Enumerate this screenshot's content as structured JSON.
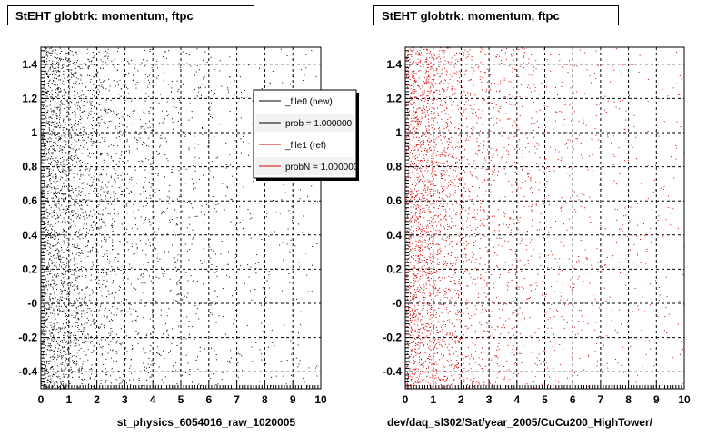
{
  "panels": [
    {
      "title": "StEHT globtrk: momentum, ftpc",
      "xlabel": "st_physics_6054016_raw_1020005",
      "marker_color": "#000000"
    },
    {
      "title": "StEHT globtrk: momentum, ftpc",
      "xlabel": "dev/daq_sl302/Sat/year_2005/CuCu200_HighTower/",
      "marker_color": "#d40000"
    }
  ],
  "legend": {
    "entries": [
      {
        "label": "_file0 (new)",
        "color": "#000000"
      },
      {
        "label": "prob = 1.000000",
        "color": "#000000"
      },
      {
        "label": "_file1 (ref)",
        "color": "#d40000"
      },
      {
        "label": "probN = 1.000000",
        "color": "#d40000"
      }
    ]
  },
  "footer": "...",
  "chart_data": [
    {
      "type": "scatter",
      "title": "StEHT globtrk: momentum, ftpc",
      "xlabel": "st_physics_6054016_raw_1020005",
      "ylabel": "",
      "xlim": [
        0,
        10
      ],
      "ylim": [
        -0.5,
        1.5
      ],
      "xticks": [
        "0",
        "1",
        "2",
        "3",
        "4",
        "5",
        "6",
        "7",
        "8",
        "9",
        "10"
      ],
      "yticks": [
        "-0.4",
        "-0.2",
        "-0",
        "0.2",
        "0.4",
        "0.6",
        "0.8",
        "1",
        "1.2",
        "1.4"
      ],
      "grid": true,
      "density_profile": {
        "description_bins_x": [
          0,
          0.5,
          1,
          1.5,
          2,
          2.5,
          3,
          4,
          5,
          6,
          7,
          8,
          9,
          10
        ],
        "relative_density": [
          1.0,
          0.85,
          0.6,
          0.42,
          0.32,
          0.25,
          0.2,
          0.14,
          0.1,
          0.08,
          0.06,
          0.05,
          0.04
        ]
      },
      "series": [
        {
          "name": "_file0 (new)",
          "color": "#000000"
        }
      ]
    },
    {
      "type": "scatter",
      "title": "StEHT globtrk: momentum, ftpc",
      "xlabel": "dev/daq_sl302/Sat/year_2005/CuCu200_HighTower/",
      "ylabel": "",
      "xlim": [
        0,
        10
      ],
      "ylim": [
        -0.5,
        1.5
      ],
      "xticks": [
        "0",
        "1",
        "2",
        "3",
        "4",
        "5",
        "6",
        "7",
        "8",
        "9",
        "10"
      ],
      "yticks": [
        "-0.4",
        "-0.2",
        "-0",
        "0.2",
        "0.4",
        "0.6",
        "0.8",
        "1",
        "1.2",
        "1.4"
      ],
      "grid": true,
      "density_profile": {
        "description_bins_x": [
          0,
          0.5,
          1,
          1.5,
          2,
          2.5,
          3,
          4,
          5,
          6,
          7,
          8,
          9,
          10
        ],
        "relative_density": [
          1.0,
          0.85,
          0.6,
          0.42,
          0.32,
          0.25,
          0.2,
          0.14,
          0.1,
          0.08,
          0.06,
          0.05,
          0.04
        ]
      },
      "series": [
        {
          "name": "_file1 (ref)",
          "color": "#d40000"
        }
      ]
    }
  ]
}
